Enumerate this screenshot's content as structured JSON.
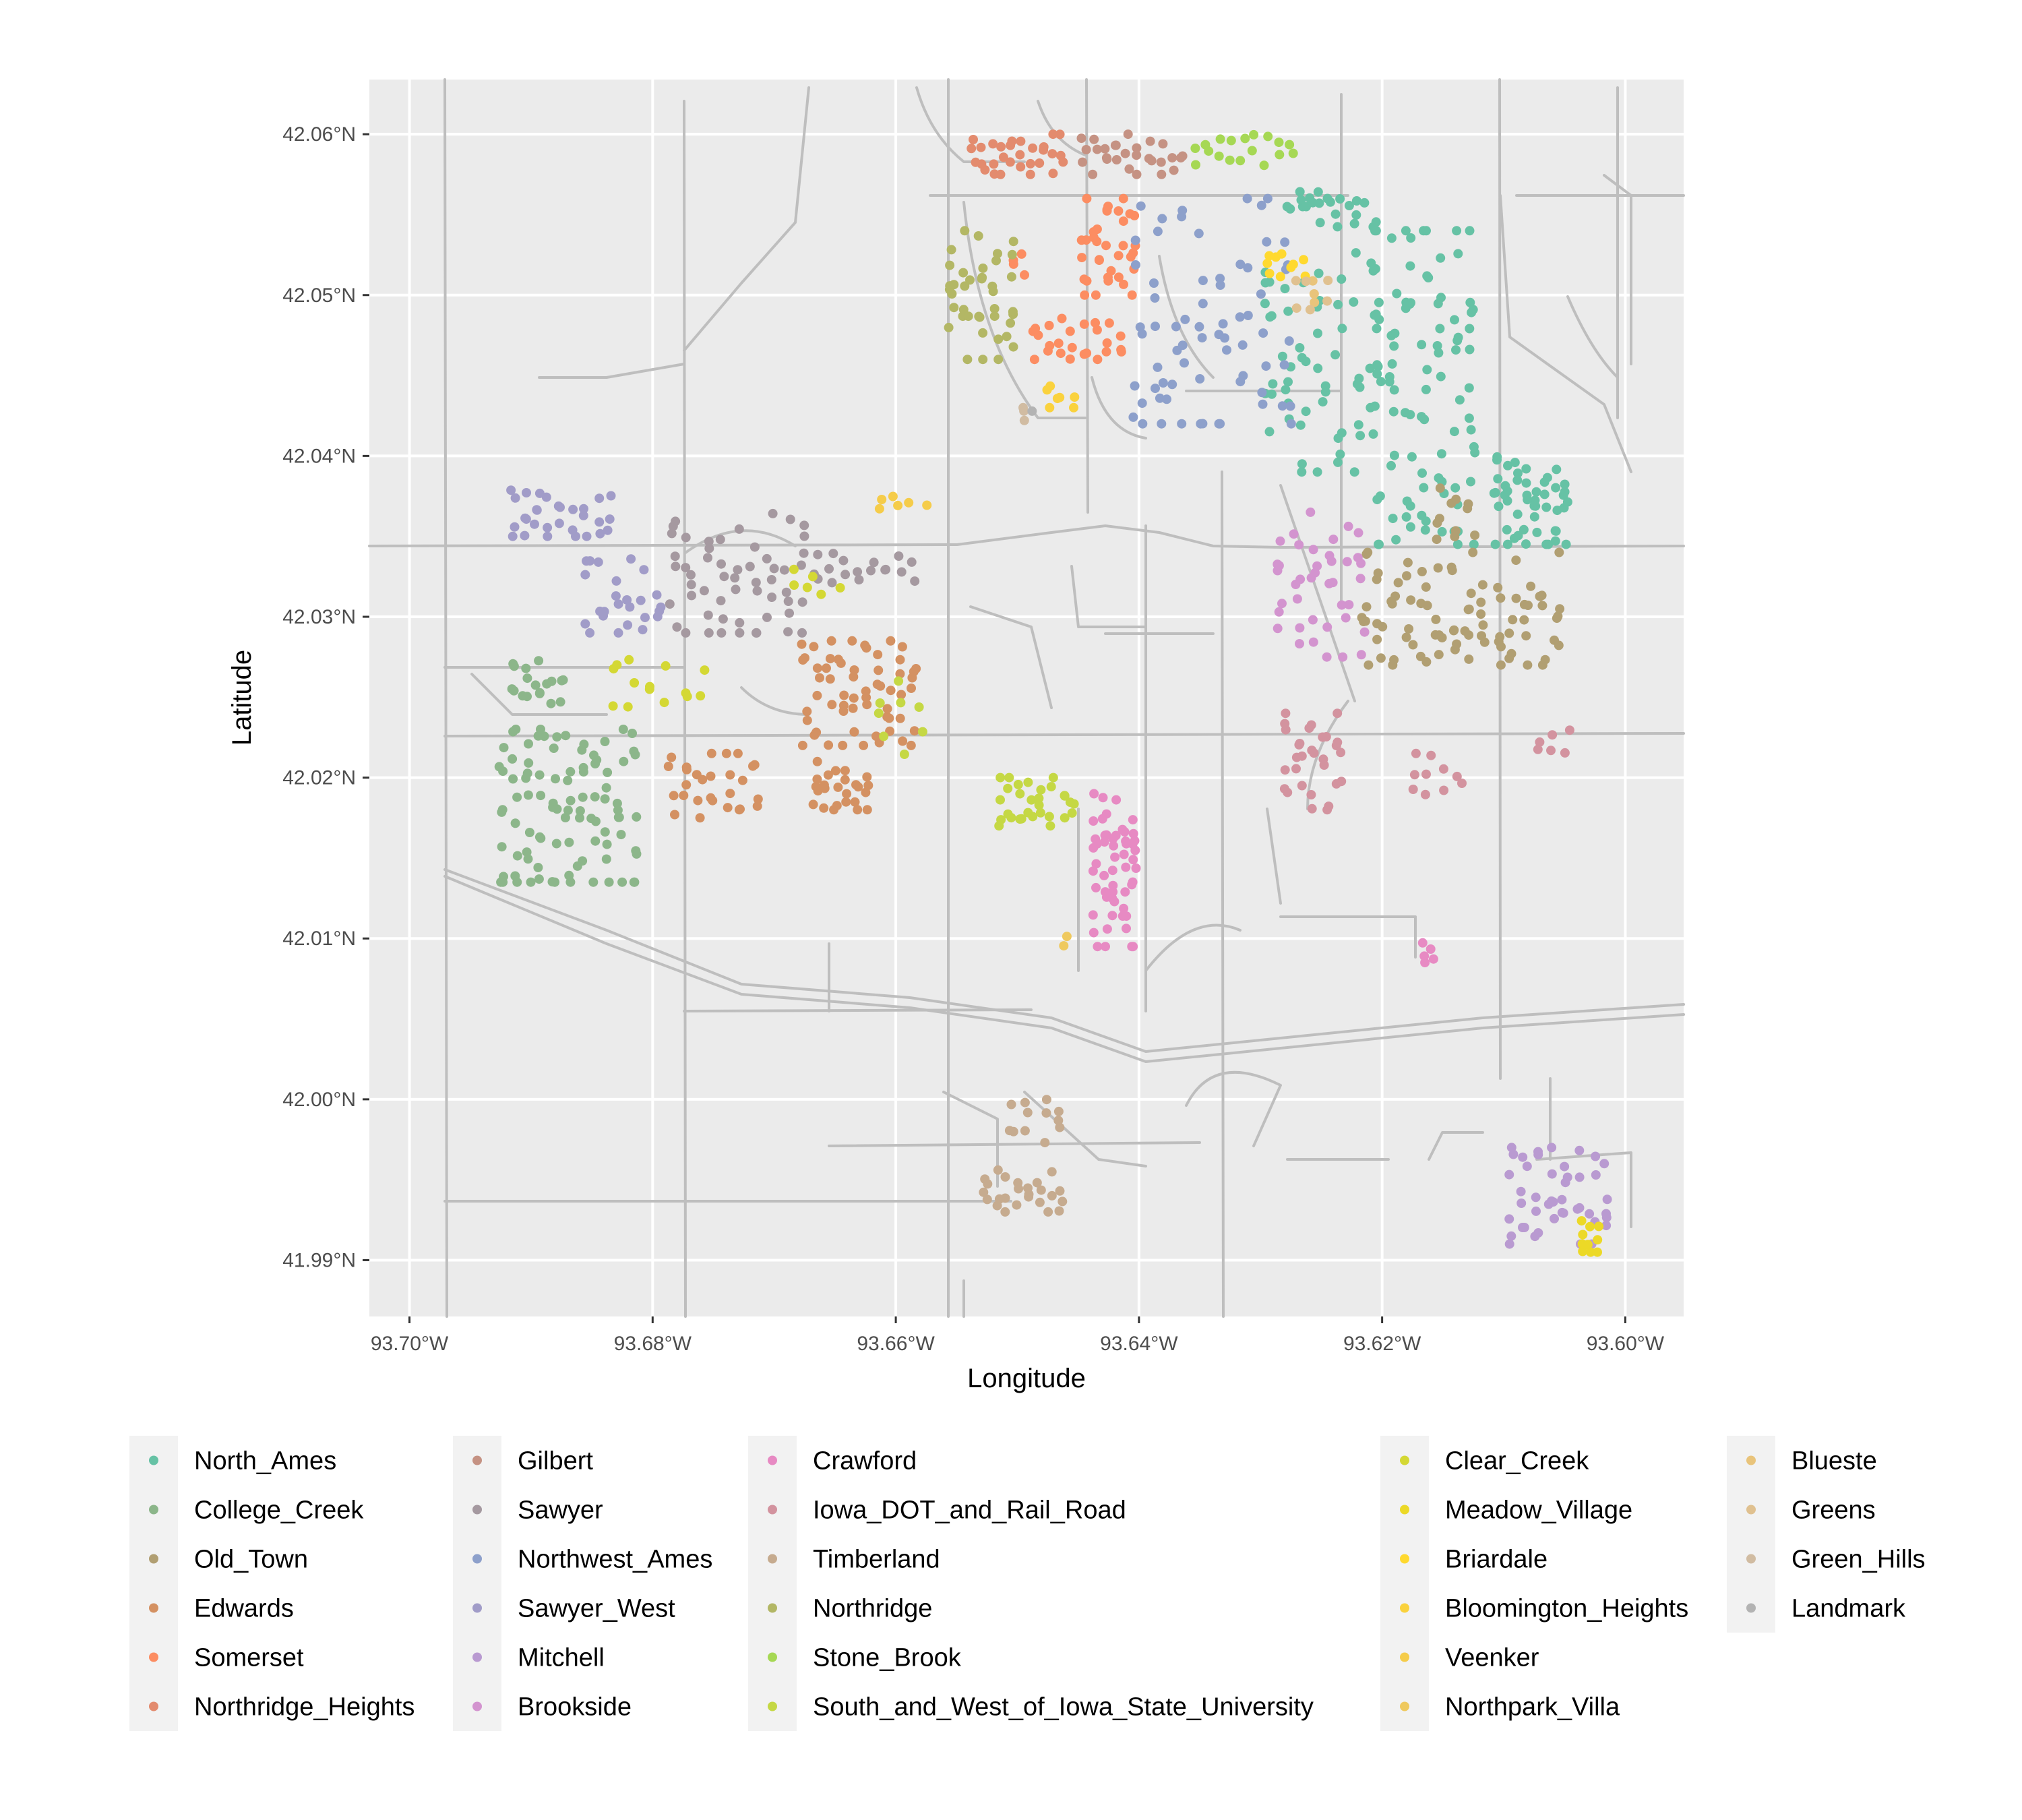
{
  "chart_data": {
    "type": "scatter",
    "title": "",
    "xlabel": "Longitude",
    "ylabel": "Latitude",
    "xlim": [
      -93.7033,
      -93.5952
    ],
    "ylim": [
      41.9865,
      42.0634
    ],
    "x_ticks": [
      {
        "value": -93.7,
        "label": "93.70°W"
      },
      {
        "value": -93.68,
        "label": "93.68°W"
      },
      {
        "value": -93.66,
        "label": "93.66°W"
      },
      {
        "value": -93.64,
        "label": "93.64°W"
      },
      {
        "value": -93.62,
        "label": "93.62°W"
      },
      {
        "value": -93.6,
        "label": "93.60°W"
      }
    ],
    "y_ticks": [
      {
        "value": 41.99,
        "label": "41.99°N"
      },
      {
        "value": 42.0,
        "label": "42.00°N"
      },
      {
        "value": 42.01,
        "label": "42.01°N"
      },
      {
        "value": 42.02,
        "label": "42.02°N"
      },
      {
        "value": 42.03,
        "label": "42.03°N"
      },
      {
        "value": 42.04,
        "label": "42.04°N"
      },
      {
        "value": 42.05,
        "label": "42.05°N"
      },
      {
        "value": 42.06,
        "label": "42.06°N"
      }
    ],
    "grid": true,
    "legend_position": "bottom",
    "legend_columns": [
      [
        "North_Ames",
        "College_Creek",
        "Old_Town",
        "Edwards",
        "Somerset",
        "Northridge_Heights"
      ],
      [
        "Gilbert",
        "Sawyer",
        "Northwest_Ames",
        "Sawyer_West",
        "Mitchell",
        "Brookside"
      ],
      [
        "Crawford",
        "Iowa_DOT_and_Rail_Road",
        "Timberland",
        "Northridge",
        "Stone_Brook",
        "South_and_West_of_Iowa_State_University"
      ],
      [
        "Clear_Creek",
        "Meadow_Village",
        "Briardale",
        "Bloomington_Heights",
        "Veenker",
        "Northpark_Villa"
      ],
      [
        "Blueste",
        "Greens",
        "Green_Hills",
        "Landmark"
      ]
    ],
    "series": [
      {
        "name": "North_Ames",
        "color": "#66C2A5",
        "clusters": [
          {
            "lon": [
              -93.621,
              -93.612
            ],
            "lat": [
              42.0345,
              42.054
            ],
            "n": 95
          },
          {
            "lon": [
              -93.611,
              -93.6045
            ],
            "lat": [
              42.0345,
              42.04
            ],
            "n": 50
          },
          {
            "lon": [
              -93.63,
              -93.62
            ],
            "lat": [
              42.039,
              42.0555
            ],
            "n": 70
          },
          {
            "lon": [
              -93.627,
              -93.621
            ],
            "lat": [
              42.0555,
              42.0565
            ],
            "n": 12
          }
        ]
      },
      {
        "name": "College_Creek",
        "color": "#8CB68A",
        "clusters": [
          {
            "lon": [
              -93.693,
              -93.681
            ],
            "lat": [
              42.0135,
              42.023
            ],
            "n": 95
          },
          {
            "lon": [
              -93.692,
              -93.687
            ],
            "lat": [
              42.0245,
              42.0275
            ],
            "n": 18
          }
        ]
      },
      {
        "name": "Old_Town",
        "color": "#B19F72",
        "clusters": [
          {
            "lon": [
              -93.622,
              -93.605
            ],
            "lat": [
              42.027,
              42.034
            ],
            "n": 85
          },
          {
            "lon": [
              -93.616,
              -93.612
            ],
            "lat": [
              42.034,
              42.038
            ],
            "n": 12
          }
        ]
      },
      {
        "name": "Edwards",
        "color": "#D49162",
        "clusters": [
          {
            "lon": [
              -93.668,
              -93.658
            ],
            "lat": [
              42.022,
              42.0285
            ],
            "n": 60
          },
          {
            "lon": [
              -93.679,
              -93.671
            ],
            "lat": [
              42.0175,
              42.0215
            ],
            "n": 28
          },
          {
            "lon": [
              -93.667,
              -93.662
            ],
            "lat": [
              42.018,
              42.021
            ],
            "n": 25
          }
        ]
      },
      {
        "name": "Somerset",
        "color": "#FC8D62",
        "clusters": [
          {
            "lon": [
              -93.645,
              -93.64
            ],
            "lat": [
              42.05,
              42.056
            ],
            "n": 35
          },
          {
            "lon": [
              -93.649,
              -93.641
            ],
            "lat": [
              42.046,
              42.049
            ],
            "n": 25
          },
          {
            "lon": [
              -93.651,
              -93.649
            ],
            "lat": [
              42.051,
              42.053
            ],
            "n": 4
          }
        ]
      },
      {
        "name": "Northridge_Heights",
        "color": "#E38B6E",
        "clusters": [
          {
            "lon": [
              -93.654,
              -93.646
            ],
            "lat": [
              42.0575,
              42.06
            ],
            "n": 30
          }
        ]
      },
      {
        "name": "Gilbert",
        "color": "#C59283",
        "clusters": [
          {
            "lon": [
              -93.645,
              -93.636
            ],
            "lat": [
              42.0575,
              42.06
            ],
            "n": 28
          }
        ]
      },
      {
        "name": "Sawyer",
        "color": "#A599A0",
        "clusters": [
          {
            "lon": [
              -93.679,
              -93.667
            ],
            "lat": [
              42.029,
              42.0365
            ],
            "n": 55
          },
          {
            "lon": [
              -93.667,
              -93.658
            ],
            "lat": [
              42.032,
              42.0345
            ],
            "n": 18
          }
        ]
      },
      {
        "name": "Northwest_Ames",
        "color": "#8DA0CB",
        "clusters": [
          {
            "lon": [
              -93.641,
              -93.627
            ],
            "lat": [
              42.042,
              42.056
            ],
            "n": 65
          },
          {
            "lon": [
              -93.639,
              -93.637
            ],
            "lat": [
              42.043,
              42.0445
            ],
            "n": 4
          }
        ]
      },
      {
        "name": "Sawyer_West",
        "color": "#A19CC8",
        "clusters": [
          {
            "lon": [
              -93.692,
              -93.683
            ],
            "lat": [
              42.035,
              42.038
            ],
            "n": 30
          },
          {
            "lon": [
              -93.686,
              -93.679
            ],
            "lat": [
              42.029,
              42.034
            ],
            "n": 25
          }
        ]
      },
      {
        "name": "Mitchell",
        "color": "#B99AD1",
        "clusters": [
          {
            "lon": [
              -93.61,
              -93.601
            ],
            "lat": [
              41.991,
              41.997
            ],
            "n": 45
          }
        ]
      },
      {
        "name": "Brookside",
        "color": "#D394CF",
        "clusters": [
          {
            "lon": [
              -93.629,
              -93.621
            ],
            "lat": [
              42.0275,
              42.0365
            ],
            "n": 40
          }
        ]
      },
      {
        "name": "Crawford",
        "color": "#E78AC3",
        "clusters": [
          {
            "lon": [
              -93.644,
              -93.64
            ],
            "lat": [
              42.0095,
              42.019
            ],
            "n": 55
          },
          {
            "lon": [
              -93.617,
              -93.6155
            ],
            "lat": [
              42.0085,
              42.01
            ],
            "n": 5
          }
        ]
      },
      {
        "name": "Iowa_DOT_and_Rail_Road",
        "color": "#D3939F",
        "clusters": [
          {
            "lon": [
              -93.6285,
              -93.623
            ],
            "lat": [
              42.018,
              42.024
            ],
            "n": 30
          },
          {
            "lon": [
              -93.618,
              -93.613
            ],
            "lat": [
              42.0185,
              42.0215
            ],
            "n": 10
          },
          {
            "lon": [
              -93.608,
              -93.604
            ],
            "lat": [
              42.021,
              42.023
            ],
            "n": 6
          }
        ]
      },
      {
        "name": "Timberland",
        "color": "#C6AB8F",
        "clusters": [
          {
            "lon": [
              -93.653,
              -93.646
            ],
            "lat": [
              41.993,
              41.996
            ],
            "n": 25
          },
          {
            "lon": [
              -93.651,
              -93.646
            ],
            "lat": [
              41.997,
              42.0
            ],
            "n": 12
          }
        ]
      },
      {
        "name": "Northridge",
        "color": "#B3B765",
        "clusters": [
          {
            "lon": [
              -93.656,
              -93.65
            ],
            "lat": [
              42.046,
              42.054
            ],
            "n": 40
          }
        ]
      },
      {
        "name": "Stone_Brook",
        "color": "#A6D854",
        "clusters": [
          {
            "lon": [
              -93.636,
              -93.627
            ],
            "lat": [
              42.058,
              42.06
            ],
            "n": 18
          }
        ]
      },
      {
        "name": "South_and_West_of_Iowa_State_University",
        "color": "#C5D844",
        "clusters": [
          {
            "lon": [
              -93.652,
              -93.645
            ],
            "lat": [
              42.017,
              42.02
            ],
            "n": 30
          },
          {
            "lon": [
              -93.662,
              -93.657
            ],
            "lat": [
              42.021,
              42.026
            ],
            "n": 8
          }
        ]
      },
      {
        "name": "Clear_Creek",
        "color": "#D4D834",
        "clusters": [
          {
            "lon": [
              -93.684,
              -93.675
            ],
            "lat": [
              42.024,
              42.028
            ],
            "n": 14
          },
          {
            "lon": [
              -93.669,
              -93.664
            ],
            "lat": [
              42.031,
              42.033
            ],
            "n": 6
          }
        ]
      },
      {
        "name": "Meadow_Village",
        "color": "#ECD927",
        "clusters": [
          {
            "lon": [
              -93.604,
              -93.602
            ],
            "lat": [
              41.9905,
              41.9925
            ],
            "n": 10
          }
        ]
      },
      {
        "name": "Briardale",
        "color": "#FFD92F",
        "clusters": [
          {
            "lon": [
              -93.63,
              -93.626
            ],
            "lat": [
              42.051,
              42.053
            ],
            "n": 10
          }
        ]
      },
      {
        "name": "Bloomington_Heights",
        "color": "#FAD23D",
        "clusters": [
          {
            "lon": [
              -93.648,
              -93.645
            ],
            "lat": [
              42.043,
              42.045
            ],
            "n": 7
          }
        ]
      },
      {
        "name": "Veenker",
        "color": "#F5CC4A",
        "clusters": [
          {
            "lon": [
              -93.662,
              -93.657
            ],
            "lat": [
              42.0365,
              42.038
            ],
            "n": 6
          }
        ]
      },
      {
        "name": "Northpark_Villa",
        "color": "#EFC95E",
        "clusters": [
          {
            "lon": [
              -93.6465,
              -93.6455
            ],
            "lat": [
              42.0095,
              42.0105
            ],
            "n": 2
          }
        ]
      },
      {
        "name": "Blueste",
        "color": "#E9C47B",
        "clusters": [
          {
            "lon": [
              -93.626,
              -93.625
            ],
            "lat": [
              42.0495,
              42.051
            ],
            "n": 3
          }
        ]
      },
      {
        "name": "Greens",
        "color": "#E0C190",
        "clusters": [
          {
            "lon": [
              -93.628,
              -93.624
            ],
            "lat": [
              42.049,
              42.051
            ],
            "n": 6
          }
        ]
      },
      {
        "name": "Green_Hills",
        "color": "#D1BCA2",
        "clusters": [
          {
            "lon": [
              -93.65,
              -93.649
            ],
            "lat": [
              42.042,
              42.0435
            ],
            "n": 3
          }
        ]
      },
      {
        "name": "Landmark",
        "color": "#B3B3B3",
        "clusters": [
          {
            "lon": [
              -93.6495,
              -93.6485
            ],
            "lat": [
              42.0425,
              42.043
            ],
            "n": 1
          }
        ]
      }
    ],
    "colors": {
      "panel_background": "#EBEBEB",
      "gridline": "#FFFFFF",
      "road": "#BEBEBE",
      "legend_key_background": "#F2F2F2",
      "axis_text": "#4D4D4D"
    }
  }
}
